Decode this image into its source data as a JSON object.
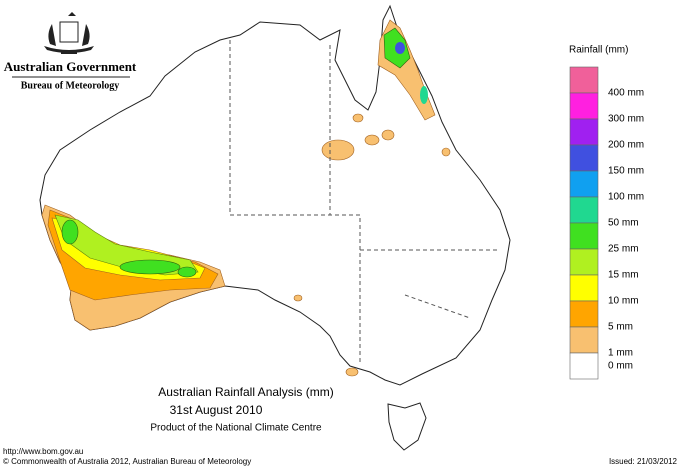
{
  "header": {
    "line1": "Australian Government",
    "line2": "Bureau of Meteorology"
  },
  "map": {
    "title": "Australian Rainfall Analysis (mm)",
    "date": "31st August 2010",
    "product": "Product of the National Climate Centre"
  },
  "legend": {
    "title": "Rainfall (mm)",
    "colors": [
      "#f0609a",
      "#ff20e0",
      "#a020f0",
      "#4050e0",
      "#10a0f0",
      "#20d890",
      "#40e020",
      "#b0f020",
      "#ffff00",
      "#ffa500",
      "#f8c070",
      "#ffffff"
    ],
    "labels": [
      "400 mm",
      "300 mm",
      "200 mm",
      "150 mm",
      "100 mm",
      "50 mm",
      "25 mm",
      "15 mm",
      "10 mm",
      "5 mm",
      "1 mm",
      "0 mm"
    ]
  },
  "footer": {
    "url": "http://www.bom.gov.au",
    "copyright": "© Commonwealth of Australia 2012, Australian Bureau of Meteorology",
    "issued": "Issued: 21/03/2012"
  }
}
